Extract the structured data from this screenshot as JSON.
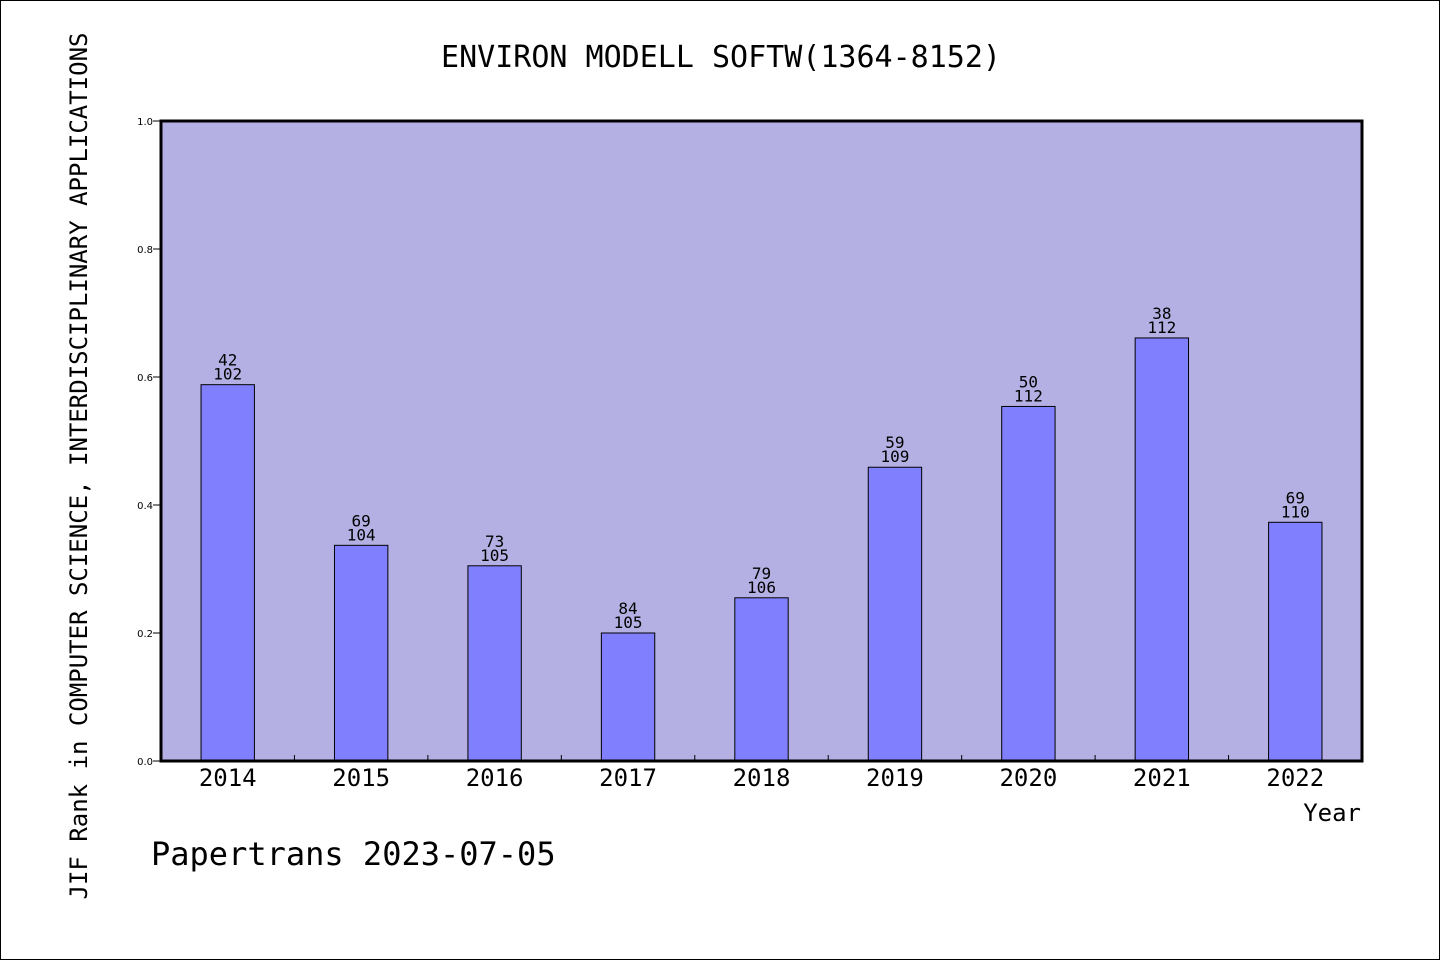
{
  "chart_data": {
    "type": "bar",
    "title": "ENVIRON MODELL SOFTW(1364-8152)",
    "xlabel": "Year",
    "ylabel": "JIF Rank in COMPUTER SCIENCE, INTERDISCIPLINARY APPLICATIONS",
    "categories": [
      "2014",
      "2015",
      "2016",
      "2017",
      "2018",
      "2019",
      "2020",
      "2021",
      "2022"
    ],
    "values": [
      0.588,
      0.337,
      0.305,
      0.2,
      0.255,
      0.459,
      0.554,
      0.661,
      0.373
    ],
    "rank": [
      "42",
      "69",
      "73",
      "84",
      "79",
      "59",
      "50",
      "38",
      "69"
    ],
    "total": [
      "102",
      "104",
      "105",
      "105",
      "106",
      "109",
      "112",
      "112",
      "110"
    ],
    "ylim": [
      0,
      1.0
    ],
    "yticks": [
      "0.0",
      "0.2",
      "0.4",
      "0.6",
      "0.8",
      "1.0"
    ],
    "grid": false,
    "colors": {
      "plot_background": "#b5b0e3",
      "bar_fill": "#8080ff",
      "bar_stroke": "#000000"
    }
  },
  "footer": {
    "watermark": "Papertrans 2023-07-05"
  }
}
